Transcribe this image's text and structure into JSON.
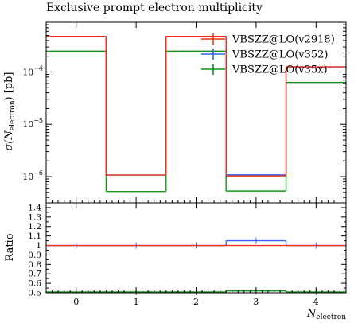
{
  "chart_data": {
    "type": "line",
    "title": "Exclusive prompt electron multiplicity",
    "xlabel": "N",
    "xlabel_sub": "electron",
    "ylabel": "σ(N",
    "ylabel_sub": "electron",
    "ylabel_tail": ") [pb]",
    "ratio_ylabel": "Ratio",
    "x_bin_edges": [
      -0.5,
      0.5,
      1.5,
      2.5,
      3.5,
      4.5
    ],
    "x_ticks": [
      0,
      1,
      2,
      3,
      4
    ],
    "x_tick_labels": [
      "0",
      "1",
      "2",
      "3",
      "4"
    ],
    "xlim": [
      -0.5,
      4.5
    ],
    "ylim": [
      3.15e-07,
      0.00089
    ],
    "log_y": true,
    "y_tick_labels": [
      {
        "value": 1e-06,
        "base": "10",
        "exp": "−6"
      },
      {
        "value": 1e-05,
        "base": "10",
        "exp": "−5"
      },
      {
        "value": 0.0001,
        "base": "10",
        "exp": "−4"
      }
    ],
    "series": [
      {
        "name": "VBSZZ@LO(v2918)",
        "color": "#ee3311",
        "values": [
          0.00048,
          1.07e-06,
          0.00048,
          1.03e-06,
          0.000125
        ]
      },
      {
        "name": "VBSZZ@LO(v352)",
        "color": "#3366ee",
        "values": [
          0.00048,
          1.07e-06,
          0.00048,
          1.08e-06,
          0.000125
        ]
      },
      {
        "name": "VBSZZ@LO(v35x)",
        "color": "#109618",
        "values": [
          0.00025,
          5.2e-07,
          0.00025,
          5.3e-07,
          6.3e-05
        ]
      }
    ],
    "ratio": {
      "ylim": [
        0.5,
        1.45
      ],
      "y_tick_labels": [
        "0.5",
        "0.6",
        "0.7",
        "0.8",
        "0.9",
        "1",
        "1.1",
        "1.2",
        "1.3",
        "1.4"
      ],
      "series": [
        {
          "name": "VBSZZ@LO(v2918)",
          "color": "#ee3311",
          "values": [
            1.0,
            1.0,
            1.0,
            1.0,
            1.0
          ]
        },
        {
          "name": "VBSZZ@LO(v352)",
          "color": "#3366ee",
          "values": [
            1.0,
            1.0,
            1.0,
            1.05,
            1.0
          ]
        },
        {
          "name": "VBSZZ@LO(v35x)",
          "color": "#109618",
          "values": [
            0.5,
            0.5,
            0.5,
            0.52,
            0.5
          ]
        }
      ]
    },
    "legend_position": "top-right",
    "grid": false
  }
}
